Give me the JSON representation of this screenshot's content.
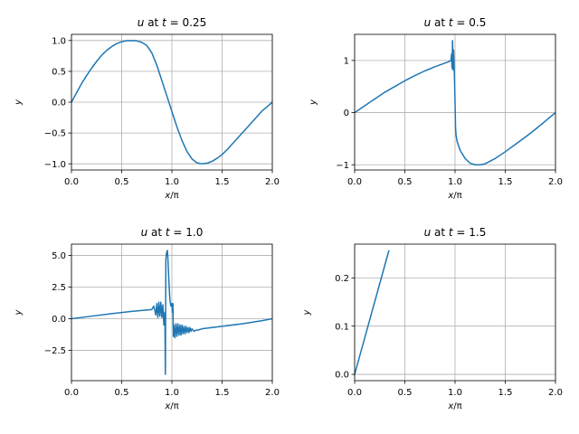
{
  "figure": {
    "background": "#ffffff",
    "line_color": "#1f77b4",
    "grid_color": "#b0b0b0"
  },
  "chart_data": [
    {
      "type": "line",
      "title": "u at t = 0.25",
      "title_parts": {
        "var": "u",
        "mid": " at ",
        "tvar": "t",
        "eq": " = 0.25"
      },
      "xlabel": "x/π",
      "xlabel_parts": {
        "var": "x",
        "rest": "/π"
      },
      "ylabel": "y",
      "xlim": [
        0.0,
        2.0
      ],
      "ylim": [
        -1.1,
        1.1
      ],
      "xticks": [
        0.0,
        0.5,
        1.0,
        1.5,
        2.0
      ],
      "xtick_labels": [
        "0.0",
        "0.5",
        "1.0",
        "1.5",
        "2.0"
      ],
      "yticks": [
        -1.0,
        -0.5,
        0.0,
        0.5,
        1.0
      ],
      "ytick_labels": [
        "−1.0",
        "−0.5",
        "0.0",
        "0.5",
        "1.0"
      ],
      "grid": true,
      "series": [
        {
          "x": [
            0.0,
            0.05,
            0.1,
            0.15,
            0.2,
            0.25,
            0.3,
            0.35,
            0.4,
            0.45,
            0.5,
            0.55,
            0.6,
            0.65,
            0.7,
            0.75,
            0.8,
            0.85,
            0.9,
            0.95,
            1.0,
            1.05,
            1.1,
            1.15,
            1.2,
            1.25,
            1.3,
            1.35,
            1.4,
            1.45,
            1.5,
            1.55,
            1.6,
            1.65,
            1.7,
            1.75,
            1.8,
            1.85,
            1.9,
            1.95,
            2.0
          ],
          "y": [
            0.0,
            0.15,
            0.3,
            0.43,
            0.55,
            0.66,
            0.76,
            0.84,
            0.9,
            0.95,
            0.98,
            0.997,
            1.0,
            0.995,
            0.97,
            0.92,
            0.8,
            0.6,
            0.35,
            0.1,
            -0.15,
            -0.4,
            -0.62,
            -0.8,
            -0.92,
            -0.985,
            -1.0,
            -0.99,
            -0.96,
            -0.91,
            -0.85,
            -0.77,
            -0.68,
            -0.59,
            -0.5,
            -0.41,
            -0.32,
            -0.23,
            -0.14,
            -0.07,
            0.0
          ]
        }
      ]
    },
    {
      "type": "line",
      "title": "u at t = 0.5",
      "title_parts": {
        "var": "u",
        "mid": " at ",
        "tvar": "t",
        "eq": " = 0.5"
      },
      "xlabel": "x/π",
      "xlabel_parts": {
        "var": "x",
        "rest": "/π"
      },
      "ylabel": "y",
      "xlim": [
        0.0,
        2.0
      ],
      "ylim": [
        -1.1,
        1.5
      ],
      "xticks": [
        0.0,
        0.5,
        1.0,
        1.5,
        2.0
      ],
      "xtick_labels": [
        "0.0",
        "0.5",
        "1.0",
        "1.5",
        "2.0"
      ],
      "yticks": [
        -1,
        0,
        1
      ],
      "ytick_labels": [
        "−1",
        "0",
        "1"
      ],
      "grid": true,
      "series": [
        {
          "x": [
            0.0,
            0.1,
            0.2,
            0.3,
            0.4,
            0.5,
            0.6,
            0.7,
            0.8,
            0.9,
            0.93,
            0.95,
            0.96,
            0.965,
            0.97,
            0.975,
            0.98,
            0.985,
            0.99,
            0.995,
            1.0,
            1.005,
            1.01,
            1.02,
            1.05,
            1.1,
            1.15,
            1.2,
            1.25,
            1.3,
            1.4,
            1.5,
            1.6,
            1.7,
            1.8,
            1.9,
            2.0
          ],
          "y": [
            0.0,
            0.13,
            0.26,
            0.39,
            0.5,
            0.61,
            0.71,
            0.8,
            0.88,
            0.95,
            0.97,
            0.99,
            1.0,
            1.12,
            0.85,
            1.38,
            0.82,
            1.2,
            0.95,
            0.6,
            0.2,
            -0.3,
            -0.43,
            -0.55,
            -0.72,
            -0.88,
            -0.97,
            -1.0,
            -1.0,
            -0.98,
            -0.88,
            -0.75,
            -0.61,
            -0.47,
            -0.32,
            -0.16,
            0.0
          ]
        }
      ]
    },
    {
      "type": "line",
      "title": "u at t = 1.0",
      "title_parts": {
        "var": "u",
        "mid": " at ",
        "tvar": "t",
        "eq": " = 1.0"
      },
      "xlabel": "x/π",
      "xlabel_parts": {
        "var": "x",
        "rest": "/π"
      },
      "ylabel": "y",
      "xlim": [
        0.0,
        2.0
      ],
      "ylim": [
        -4.9,
        5.9
      ],
      "xticks": [
        0.0,
        0.5,
        1.0,
        1.5,
        2.0
      ],
      "xtick_labels": [
        "0.0",
        "0.5",
        "1.0",
        "1.5",
        "2.0"
      ],
      "yticks": [
        -2.5,
        0.0,
        2.5,
        5.0
      ],
      "ytick_labels": [
        "−2.5",
        "0.0",
        "2.5",
        "5.0"
      ],
      "grid": true,
      "series": [
        {
          "x": [
            0.0,
            0.2,
            0.4,
            0.6,
            0.8,
            0.82,
            0.84,
            0.85,
            0.86,
            0.87,
            0.88,
            0.89,
            0.9,
            0.91,
            0.92,
            0.93,
            0.935,
            0.94,
            0.945,
            0.95,
            0.955,
            0.96,
            0.97,
            0.98,
            0.99,
            1.0,
            1.005,
            1.01,
            1.015,
            1.02,
            1.03,
            1.04,
            1.05,
            1.06,
            1.07,
            1.08,
            1.09,
            1.1,
            1.11,
            1.12,
            1.13,
            1.14,
            1.15,
            1.16,
            1.17,
            1.18,
            1.19,
            1.2,
            1.22,
            1.24,
            1.26,
            1.28,
            1.3,
            1.5,
            1.7,
            1.9,
            2.0
          ],
          "y": [
            0.0,
            0.2,
            0.4,
            0.58,
            0.72,
            1.0,
            0.3,
            1.2,
            0.1,
            1.3,
            0.2,
            1.3,
            0.1,
            1.1,
            -0.5,
            0.5,
            -4.4,
            4.7,
            5.1,
            5.3,
            5.4,
            4.8,
            3.0,
            1.5,
            1.0,
            1.2,
            0.5,
            1.2,
            -1.4,
            -0.5,
            -1.5,
            -0.4,
            -1.4,
            -0.4,
            -1.3,
            -0.5,
            -1.3,
            -0.5,
            -1.2,
            -0.6,
            -1.2,
            -0.6,
            -1.1,
            -0.7,
            -1.1,
            -0.7,
            -1.0,
            -0.8,
            -1.0,
            -0.9,
            -0.9,
            -0.85,
            -0.8,
            -0.6,
            -0.4,
            -0.15,
            0.0
          ]
        }
      ]
    },
    {
      "type": "line",
      "title": "u at t = 1.5",
      "title_parts": {
        "var": "u",
        "mid": " at ",
        "tvar": "t",
        "eq": " = 1.5"
      },
      "xlabel": "x/π",
      "xlabel_parts": {
        "var": "x",
        "rest": "/π"
      },
      "ylabel": "y",
      "xlim": [
        0.0,
        2.0
      ],
      "ylim": [
        -0.013,
        0.27
      ],
      "xticks": [
        0.0,
        0.5,
        1.0,
        1.5,
        2.0
      ],
      "xtick_labels": [
        "0.0",
        "0.5",
        "1.0",
        "1.5",
        "2.0"
      ],
      "yticks": [
        0.0,
        0.1,
        0.2
      ],
      "ytick_labels": [
        "0.0",
        "0.1",
        "0.2"
      ],
      "grid": true,
      "series": [
        {
          "x": [
            0.0,
            0.34
          ],
          "y": [
            0.0,
            0.256
          ]
        }
      ]
    }
  ]
}
